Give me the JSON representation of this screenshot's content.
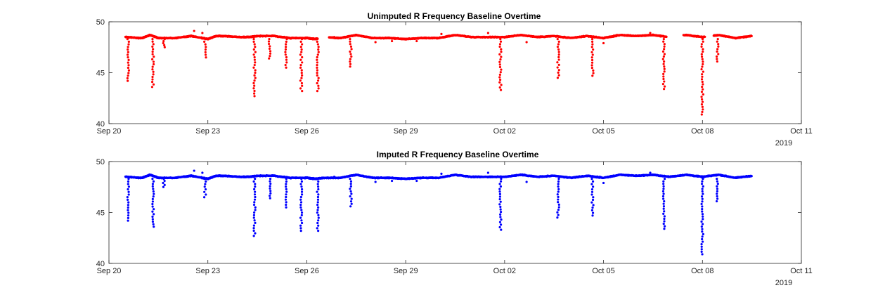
{
  "chart_data": [
    {
      "type": "scatter",
      "title": "Unimputed R Frequency Baseline Overtime",
      "xlabel": "",
      "ylabel": "",
      "x_ticks": [
        "Sep 20",
        "Sep 23",
        "Sep 26",
        "Sep 29",
        "Oct 02",
        "Oct 05",
        "Oct 08",
        "Oct 11"
      ],
      "x_secondary_label": "2019",
      "xlim": [
        "2019-09-20",
        "2019-10-11"
      ],
      "y_ticks": [
        40,
        45,
        50
      ],
      "ylim": [
        40,
        50
      ],
      "grid": false,
      "marker_color": "#ff0000",
      "baseline": [
        [
          "2019-09-20T12:00",
          48.5
        ],
        [
          "2019-09-21T00:00",
          48.4
        ],
        [
          "2019-09-21T06:00",
          48.7
        ],
        [
          "2019-09-21T12:00",
          48.4
        ],
        [
          "2019-09-22T00:00",
          48.4
        ],
        [
          "2019-09-22T12:00",
          48.6
        ],
        [
          "2019-09-23T00:00",
          48.3
        ],
        [
          "2019-09-23T06:00",
          48.6
        ],
        [
          "2019-09-23T12:00",
          48.6
        ],
        [
          "2019-09-24T00:00",
          48.5
        ],
        [
          "2019-09-24T06:00",
          48.5
        ],
        [
          "2019-09-24T12:00",
          48.6
        ],
        [
          "2019-09-25T00:00",
          48.6
        ],
        [
          "2019-09-25T12:00",
          48.4
        ],
        [
          "2019-09-26T00:00",
          48.4
        ],
        [
          "2019-09-26T06:00",
          48.3
        ],
        [
          "2019-09-26T12:00",
          48.5
        ],
        [
          "2019-09-27T00:00",
          48.4
        ],
        [
          "2019-09-27T12:00",
          48.7
        ],
        [
          "2019-09-28T00:00",
          48.4
        ],
        [
          "2019-09-28T12:00",
          48.4
        ],
        [
          "2019-09-29T00:00",
          48.3
        ],
        [
          "2019-09-29T12:00",
          48.4
        ],
        [
          "2019-09-30T00:00",
          48.4
        ],
        [
          "2019-09-30T12:00",
          48.7
        ],
        [
          "2019-10-01T00:00",
          48.5
        ],
        [
          "2019-10-01T12:00",
          48.5
        ],
        [
          "2019-10-02T00:00",
          48.5
        ],
        [
          "2019-10-02T12:00",
          48.7
        ],
        [
          "2019-10-03T00:00",
          48.5
        ],
        [
          "2019-10-03T12:00",
          48.6
        ],
        [
          "2019-10-04T00:00",
          48.4
        ],
        [
          "2019-10-04T12:00",
          48.6
        ],
        [
          "2019-10-05T00:00",
          48.4
        ],
        [
          "2019-10-05T12:00",
          48.7
        ],
        [
          "2019-10-06T00:00",
          48.6
        ],
        [
          "2019-10-06T12:00",
          48.7
        ],
        [
          "2019-10-07T00:00",
          48.5
        ],
        [
          "2019-10-07T12:00",
          48.7
        ],
        [
          "2019-10-08T00:00",
          48.5
        ],
        [
          "2019-10-08T12:00",
          48.7
        ],
        [
          "2019-10-09T00:00",
          48.4
        ],
        [
          "2019-10-09T12:00",
          48.6
        ]
      ],
      "data_gaps": [
        [
          "2019-09-26T08:00",
          "2019-09-26T16:00"
        ],
        [
          "2019-10-06T22:00",
          "2019-10-07T10:00"
        ],
        [
          "2019-10-08T02:00",
          "2019-10-08T08:00"
        ]
      ],
      "dips": [
        {
          "x": "2019-09-20T14:00",
          "min": 44.2
        },
        {
          "x": "2019-09-21T08:00",
          "min": 43.6
        },
        {
          "x": "2019-09-21T16:00",
          "min": 47.5
        },
        {
          "x": "2019-09-22T22:00",
          "min": 46.5
        },
        {
          "x": "2019-09-24T10:00",
          "min": 42.7
        },
        {
          "x": "2019-09-24T21:00",
          "min": 46.4
        },
        {
          "x": "2019-09-25T09:00",
          "min": 45.5
        },
        {
          "x": "2019-09-25T20:00",
          "min": 43.2
        },
        {
          "x": "2019-09-26T08:00",
          "min": 43.2
        },
        {
          "x": "2019-09-27T08:00",
          "min": 45.6
        },
        {
          "x": "2019-10-01T21:00",
          "min": 43.3
        },
        {
          "x": "2019-10-03T15:00",
          "min": 44.5
        },
        {
          "x": "2019-10-04T16:00",
          "min": 44.7
        },
        {
          "x": "2019-10-06T20:00",
          "min": 43.4
        },
        {
          "x": "2019-10-08T00:00",
          "min": 40.9
        },
        {
          "x": "2019-10-08T11:00",
          "min": 46.1
        }
      ],
      "outliers": [
        [
          "2019-09-22T14:00",
          49.1
        ],
        [
          "2019-09-22T20:00",
          48.9
        ],
        [
          "2019-09-26T20:00",
          48.5
        ],
        [
          "2019-09-28T02:00",
          48.0
        ],
        [
          "2019-09-28T14:00",
          48.1
        ],
        [
          "2019-09-29T08:00",
          48.1
        ],
        [
          "2019-09-30T02:00",
          48.8
        ],
        [
          "2019-10-01T12:00",
          48.9
        ],
        [
          "2019-10-02T16:00",
          48.0
        ],
        [
          "2019-10-05T00:00",
          47.9
        ],
        [
          "2019-10-06T10:00",
          48.9
        ]
      ]
    },
    {
      "type": "scatter",
      "title": "Imputed R Frequency Baseline Overtime",
      "xlabel": "",
      "ylabel": "",
      "x_ticks": [
        "Sep 20",
        "Sep 23",
        "Sep 26",
        "Sep 29",
        "Oct 02",
        "Oct 05",
        "Oct 08",
        "Oct 11"
      ],
      "x_secondary_label": "2019",
      "xlim": [
        "2019-09-20",
        "2019-10-11"
      ],
      "y_ticks": [
        40,
        45,
        50
      ],
      "ylim": [
        40,
        50
      ],
      "grid": false,
      "marker_color": "#0000ff",
      "baseline": [
        [
          "2019-09-20T12:00",
          48.5
        ],
        [
          "2019-09-21T00:00",
          48.4
        ],
        [
          "2019-09-21T06:00",
          48.7
        ],
        [
          "2019-09-21T12:00",
          48.4
        ],
        [
          "2019-09-22T00:00",
          48.4
        ],
        [
          "2019-09-22T12:00",
          48.6
        ],
        [
          "2019-09-23T00:00",
          48.3
        ],
        [
          "2019-09-23T06:00",
          48.6
        ],
        [
          "2019-09-23T12:00",
          48.6
        ],
        [
          "2019-09-24T00:00",
          48.5
        ],
        [
          "2019-09-24T06:00",
          48.5
        ],
        [
          "2019-09-24T12:00",
          48.6
        ],
        [
          "2019-09-25T00:00",
          48.6
        ],
        [
          "2019-09-25T12:00",
          48.4
        ],
        [
          "2019-09-26T00:00",
          48.4
        ],
        [
          "2019-09-26T06:00",
          48.3
        ],
        [
          "2019-09-26T12:00",
          48.4
        ],
        [
          "2019-09-27T00:00",
          48.4
        ],
        [
          "2019-09-27T12:00",
          48.7
        ],
        [
          "2019-09-28T00:00",
          48.4
        ],
        [
          "2019-09-28T12:00",
          48.4
        ],
        [
          "2019-09-29T00:00",
          48.3
        ],
        [
          "2019-09-29T12:00",
          48.4
        ],
        [
          "2019-09-30T00:00",
          48.4
        ],
        [
          "2019-09-30T12:00",
          48.7
        ],
        [
          "2019-10-01T00:00",
          48.5
        ],
        [
          "2019-10-01T12:00",
          48.5
        ],
        [
          "2019-10-02T00:00",
          48.5
        ],
        [
          "2019-10-02T12:00",
          48.7
        ],
        [
          "2019-10-03T00:00",
          48.5
        ],
        [
          "2019-10-03T12:00",
          48.6
        ],
        [
          "2019-10-04T00:00",
          48.4
        ],
        [
          "2019-10-04T12:00",
          48.6
        ],
        [
          "2019-10-05T00:00",
          48.4
        ],
        [
          "2019-10-05T12:00",
          48.7
        ],
        [
          "2019-10-06T00:00",
          48.6
        ],
        [
          "2019-10-06T12:00",
          48.7
        ],
        [
          "2019-10-07T00:00",
          48.5
        ],
        [
          "2019-10-07T12:00",
          48.7
        ],
        [
          "2019-10-08T00:00",
          48.5
        ],
        [
          "2019-10-08T12:00",
          48.7
        ],
        [
          "2019-10-09T00:00",
          48.4
        ],
        [
          "2019-10-09T12:00",
          48.6
        ]
      ],
      "data_gaps": [],
      "dips": [
        {
          "x": "2019-09-20T14:00",
          "min": 44.2
        },
        {
          "x": "2019-09-21T08:00",
          "min": 43.6
        },
        {
          "x": "2019-09-21T16:00",
          "min": 47.5
        },
        {
          "x": "2019-09-22T22:00",
          "min": 46.5
        },
        {
          "x": "2019-09-24T10:00",
          "min": 42.7
        },
        {
          "x": "2019-09-24T21:00",
          "min": 46.4
        },
        {
          "x": "2019-09-25T09:00",
          "min": 45.5
        },
        {
          "x": "2019-09-25T20:00",
          "min": 43.2
        },
        {
          "x": "2019-09-26T08:00",
          "min": 43.2
        },
        {
          "x": "2019-09-27T08:00",
          "min": 45.6
        },
        {
          "x": "2019-10-01T21:00",
          "min": 43.3
        },
        {
          "x": "2019-10-03T15:00",
          "min": 44.5
        },
        {
          "x": "2019-10-04T16:00",
          "min": 44.7
        },
        {
          "x": "2019-10-06T20:00",
          "min": 43.4
        },
        {
          "x": "2019-10-08T00:00",
          "min": 40.9
        },
        {
          "x": "2019-10-08T11:00",
          "min": 46.1
        }
      ],
      "outliers": [
        [
          "2019-09-22T14:00",
          49.1
        ],
        [
          "2019-09-22T20:00",
          48.9
        ],
        [
          "2019-09-26T20:00",
          48.5
        ],
        [
          "2019-09-28T02:00",
          48.0
        ],
        [
          "2019-09-28T14:00",
          48.1
        ],
        [
          "2019-09-29T08:00",
          48.1
        ],
        [
          "2019-09-30T02:00",
          48.8
        ],
        [
          "2019-10-01T12:00",
          48.9
        ],
        [
          "2019-10-02T16:00",
          48.0
        ],
        [
          "2019-10-05T00:00",
          47.9
        ],
        [
          "2019-10-06T10:00",
          48.9
        ]
      ]
    }
  ]
}
